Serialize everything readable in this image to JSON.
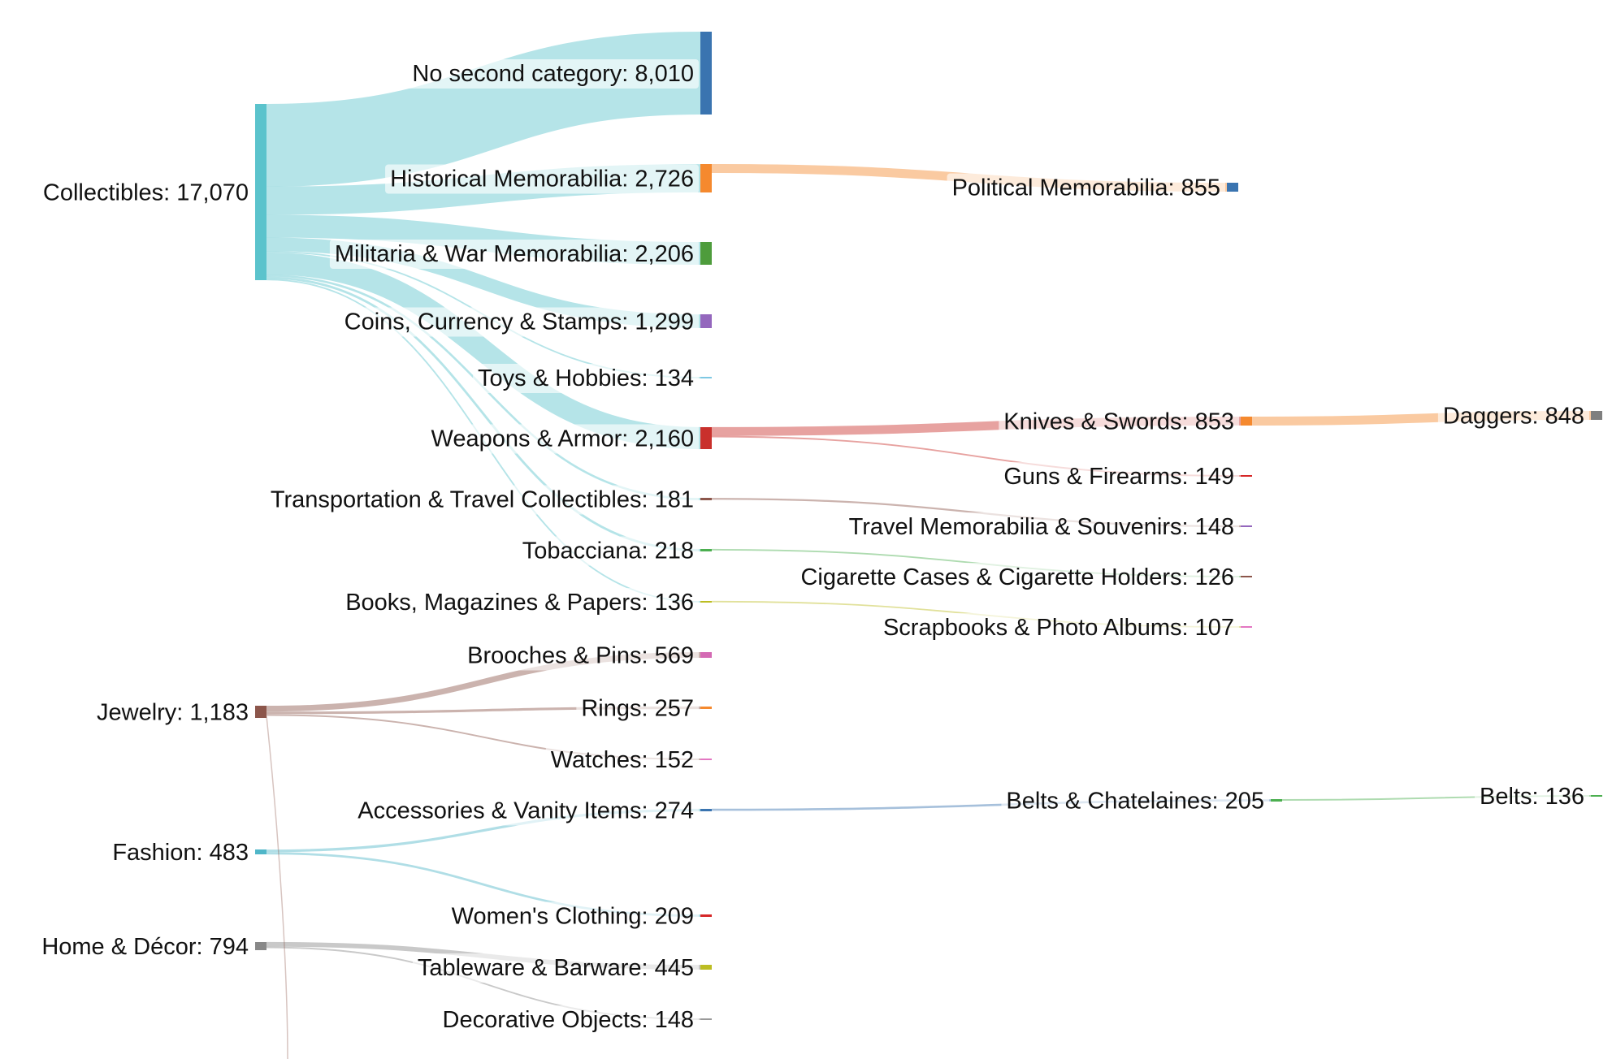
{
  "chart_data": {
    "type": "sankey",
    "nodes": [
      {
        "id": "collectibles",
        "label": "Collectibles: 17,070",
        "value": 17070,
        "color": "#5bc3cc"
      },
      {
        "id": "jewelry",
        "label": "Jewelry: 1,183",
        "value": 1183,
        "color": "#8c564b"
      },
      {
        "id": "fashion",
        "label": "Fashion: 483",
        "value": 483,
        "color": "#4fb6c8"
      },
      {
        "id": "home",
        "label": "Home & Décor: 794",
        "value": 794,
        "color": "#888888"
      },
      {
        "id": "nosecond",
        "label": "No second category: 8,010",
        "value": 8010,
        "color": "#3a74b0"
      },
      {
        "id": "historical",
        "label": "Historical Memorabilia: 2,726",
        "value": 2726,
        "color": "#f5892e"
      },
      {
        "id": "militaria",
        "label": "Militaria & War Memorabilia: 2,206",
        "value": 2206,
        "color": "#4e9c3c"
      },
      {
        "id": "coins",
        "label": "Coins, Currency & Stamps: 1,299",
        "value": 1299,
        "color": "#9467bd"
      },
      {
        "id": "toys",
        "label": "Toys & Hobbies: 134",
        "value": 134,
        "color": "#7ec8e3"
      },
      {
        "id": "weapons",
        "label": "Weapons & Armor: 2,160",
        "value": 2160,
        "color": "#c9302c"
      },
      {
        "id": "transport",
        "label": "Transportation & Travel Collectibles: 181",
        "value": 181,
        "color": "#8c564b"
      },
      {
        "id": "tobacciana",
        "label": "Tobacciana: 218",
        "value": 218,
        "color": "#4caf50"
      },
      {
        "id": "books",
        "label": "Books, Magazines & Papers: 136",
        "value": 136,
        "color": "#bcbd22"
      },
      {
        "id": "brooches",
        "label": "Brooches & Pins: 569",
        "value": 569,
        "color": "#d46ab4"
      },
      {
        "id": "rings",
        "label": "Rings: 257",
        "value": 257,
        "color": "#f5892e"
      },
      {
        "id": "watches",
        "label": "Watches: 152",
        "value": 152,
        "color": "#e377c2"
      },
      {
        "id": "accessories",
        "label": "Accessories & Vanity Items: 274",
        "value": 274,
        "color": "#3a74b0"
      },
      {
        "id": "womens",
        "label": "Women's Clothing: 209",
        "value": 209,
        "color": "#d62728"
      },
      {
        "id": "tableware",
        "label": "Tableware & Barware: 445",
        "value": 445,
        "color": "#bcbd22"
      },
      {
        "id": "decorative",
        "label": "Decorative Objects: 148",
        "value": 148,
        "color": "#999999"
      },
      {
        "id": "political",
        "label": "Political Memorabilia: 855",
        "value": 855,
        "color": "#3a74b0"
      },
      {
        "id": "knives",
        "label": "Knives & Swords: 853",
        "value": 853,
        "color": "#f5892e"
      },
      {
        "id": "guns",
        "label": "Guns & Firearms: 149",
        "value": 149,
        "color": "#d62728"
      },
      {
        "id": "travelmem",
        "label": "Travel Memorabilia & Souvenirs: 148",
        "value": 148,
        "color": "#9467bd"
      },
      {
        "id": "cigarette",
        "label": "Cigarette Cases & Cigarette Holders: 126",
        "value": 126,
        "color": "#8c564b"
      },
      {
        "id": "scrapbooks",
        "label": "Scrapbooks & Photo Albums: 107",
        "value": 107,
        "color": "#e377c2"
      },
      {
        "id": "belts_chat",
        "label": "Belts & Chatelaines: 205",
        "value": 205,
        "color": "#4caf50"
      },
      {
        "id": "daggers",
        "label": "Daggers: 848",
        "value": 848,
        "color": "#7f7f7f"
      },
      {
        "id": "belts",
        "label": "Belts: 136",
        "value": 136,
        "color": "#4caf50"
      }
    ],
    "links": [
      {
        "source": "collectibles",
        "target": "nosecond",
        "value": 8010
      },
      {
        "source": "collectibles",
        "target": "historical",
        "value": 2726
      },
      {
        "source": "collectibles",
        "target": "militaria",
        "value": 2206
      },
      {
        "source": "collectibles",
        "target": "coins",
        "value": 1299
      },
      {
        "source": "collectibles",
        "target": "toys",
        "value": 134
      },
      {
        "source": "collectibles",
        "target": "weapons",
        "value": 2160
      },
      {
        "source": "collectibles",
        "target": "transport",
        "value": 181
      },
      {
        "source": "collectibles",
        "target": "tobacciana",
        "value": 218
      },
      {
        "source": "collectibles",
        "target": "books",
        "value": 136
      },
      {
        "source": "jewelry",
        "target": "brooches",
        "value": 569
      },
      {
        "source": "jewelry",
        "target": "rings",
        "value": 257
      },
      {
        "source": "jewelry",
        "target": "watches",
        "value": 152
      },
      {
        "source": "fashion",
        "target": "accessories",
        "value": 274
      },
      {
        "source": "fashion",
        "target": "womens",
        "value": 209
      },
      {
        "source": "home",
        "target": "tableware",
        "value": 445
      },
      {
        "source": "home",
        "target": "decorative",
        "value": 148
      },
      {
        "source": "historical",
        "target": "political",
        "value": 855
      },
      {
        "source": "weapons",
        "target": "knives",
        "value": 853
      },
      {
        "source": "weapons",
        "target": "guns",
        "value": 149
      },
      {
        "source": "transport",
        "target": "travelmem",
        "value": 148
      },
      {
        "source": "tobacciana",
        "target": "cigarette",
        "value": 126
      },
      {
        "source": "books",
        "target": "scrapbooks",
        "value": 107
      },
      {
        "source": "accessories",
        "target": "belts_chat",
        "value": 205
      },
      {
        "source": "knives",
        "target": "daggers",
        "value": 848
      },
      {
        "source": "belts_chat",
        "target": "belts",
        "value": 136
      }
    ],
    "legend": "none",
    "grid": false
  }
}
